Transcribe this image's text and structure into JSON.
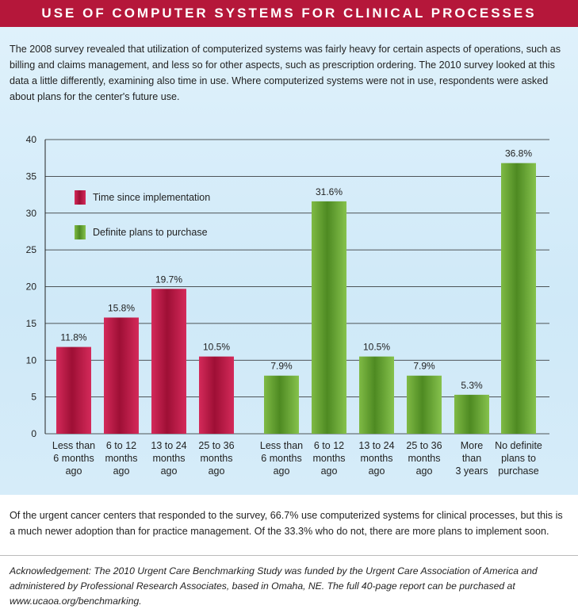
{
  "header": {
    "title": "USE OF COMPUTER SYSTEMS FOR CLINICAL PROCESSES"
  },
  "intro_text": "The 2008 survey revealed that utilization of computerized systems was fairly heavy for certain aspects of operations, such as billing and claims management, and less so for other aspects, such as prescription ordering. The 2010 survey looked at this data a little differently, examining also time in use. Where computerized systems were not in use, respondents were asked about plans for the center's future use.",
  "outro_text": "Of the urgent cancer centers that responded to the survey, 66.7% use computerized systems for clinical processes, but this is a much newer adoption than for practice management. Of the 33.3% who do not, there are more plans to implement soon.",
  "acknowledgement": "Acknowledgement: The 2010 Urgent Care Benchmarking Study was funded by the Urgent Care Association of America and administered by Professional Research Associates, based in Omaha, NE. The full 40-page report can be purchased at www.ucaoa.org/benchmarking.",
  "colors": {
    "header": "#b5173a",
    "series_red": "#c4194a",
    "series_green": "#6aa632"
  },
  "chart_data": {
    "type": "bar",
    "ylim": [
      0,
      40
    ],
    "yticks": [
      0,
      5,
      10,
      15,
      20,
      25,
      30,
      35,
      40
    ],
    "grid": true,
    "legend_position": "top-left",
    "series": [
      {
        "name": "Time since implementation",
        "color": "#c4194a",
        "categories": [
          [
            "Less than",
            "6 months",
            "ago"
          ],
          [
            "6 to 12",
            "months",
            "ago"
          ],
          [
            "13 to 24",
            "months",
            "ago"
          ],
          [
            "25 to 36",
            "months",
            "ago"
          ]
        ],
        "values": [
          11.8,
          15.8,
          19.7,
          10.5
        ],
        "labels": [
          "11.8%",
          "15.8%",
          "19.7%",
          "10.5%"
        ]
      },
      {
        "name": "Definite plans to purchase",
        "color": "#6aa632",
        "categories": [
          [
            "Less than",
            "6 months",
            "ago"
          ],
          [
            "6 to 12",
            "months",
            "ago"
          ],
          [
            "13 to 24",
            "months",
            "ago"
          ],
          [
            "25 to 36",
            "months",
            "ago"
          ],
          [
            "More",
            "than",
            "3 years"
          ],
          [
            "No definite",
            "plans to",
            "purchase"
          ]
        ],
        "values": [
          7.9,
          31.6,
          10.5,
          7.9,
          5.3,
          36.8
        ],
        "labels": [
          "7.9%",
          "31.6%",
          "10.5%",
          "7.9%",
          "5.3%",
          "36.8%"
        ]
      }
    ]
  }
}
